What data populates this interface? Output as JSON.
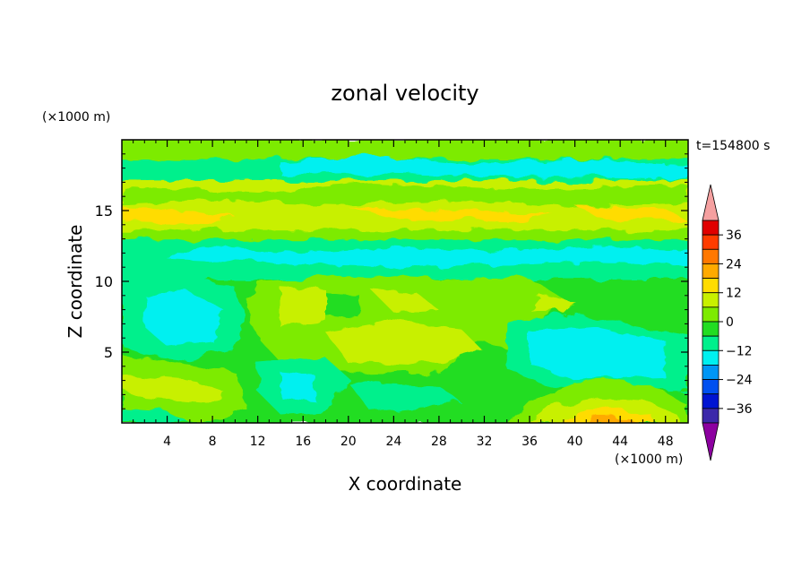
{
  "chart_data": {
    "type": "heatmap",
    "title": "zonal velocity",
    "xlabel": "X coordinate",
    "ylabel": "Z coordinate",
    "x_unit": "(×1000 m)",
    "y_unit": "(×1000 m)",
    "time_label": "t=154800 s",
    "xlim": [
      0,
      50
    ],
    "ylim": [
      0,
      20
    ],
    "x_ticks": [
      4,
      8,
      12,
      16,
      20,
      24,
      28,
      32,
      36,
      40,
      44,
      48
    ],
    "y_ticks": [
      5,
      10,
      15
    ],
    "colorbar": {
      "tick_labels": [
        "36",
        "24",
        "12",
        "0",
        "−12",
        "−24",
        "−36"
      ],
      "tick_values": [
        36,
        24,
        12,
        0,
        -12,
        -24,
        -36
      ],
      "range": [
        -42,
        42
      ],
      "extend": "both",
      "levels": [
        {
          "from": 36,
          "to": 42,
          "color": "#e00000"
        },
        {
          "from": 30,
          "to": 36,
          "color": "#ff3c00"
        },
        {
          "from": 24,
          "to": 30,
          "color": "#ff7800"
        },
        {
          "from": 18,
          "to": 24,
          "color": "#ffaa00"
        },
        {
          "from": 12,
          "to": 18,
          "color": "#ffdc00"
        },
        {
          "from": 6,
          "to": 12,
          "color": "#c8f000"
        },
        {
          "from": 0,
          "to": 6,
          "color": "#7deb00"
        },
        {
          "from": -6,
          "to": 0,
          "color": "#22dd22"
        },
        {
          "from": -12,
          "to": -6,
          "color": "#00f08c"
        },
        {
          "from": -18,
          "to": -12,
          "color": "#00f0f0"
        },
        {
          "from": -24,
          "to": -18,
          "color": "#0096f5"
        },
        {
          "from": -30,
          "to": -24,
          "color": "#0050f0"
        },
        {
          "from": -36,
          "to": -30,
          "color": "#0014d2"
        },
        {
          "from": -42,
          "to": -36,
          "color": "#3c28aa"
        }
      ],
      "over_color": "#f5a0a0",
      "under_color": "#8c00a0"
    },
    "field_bands": [
      {
        "z": [
          18.5,
          20
        ],
        "level": "0-6"
      },
      {
        "z": [
          17,
          18.5
        ],
        "level": "-12--6"
      },
      {
        "z": [
          13.5,
          17
        ],
        "level": "6-12"
      },
      {
        "z": [
          12.8,
          13.5
        ],
        "level": "0-6"
      },
      {
        "z": [
          10,
          12.8
        ],
        "level": "-12--6"
      },
      {
        "z": [
          0,
          10
        ],
        "level": "-6-0"
      }
    ],
    "features": [
      {
        "name": "positive-core",
        "x": [
          39,
          48
        ],
        "z": [
          0,
          1.5
        ],
        "value_range": [
          12,
          24
        ]
      },
      {
        "name": "central-positive-region",
        "x": [
          10,
          36
        ],
        "z": [
          3,
          10
        ],
        "value_range": [
          0,
          12
        ]
      },
      {
        "name": "left-negative-region",
        "x": [
          0,
          10
        ],
        "z": [
          4,
          10
        ],
        "value_range": [
          -18,
          -6
        ]
      },
      {
        "name": "right-negative-region",
        "x": [
          34,
          50
        ],
        "z": [
          1.5,
          8
        ],
        "value_range": [
          -18,
          -12
        ]
      },
      {
        "name": "lower-left-positive",
        "x": [
          0,
          10
        ],
        "z": [
          0,
          4
        ],
        "value_range": [
          0,
          12
        ]
      }
    ]
  }
}
